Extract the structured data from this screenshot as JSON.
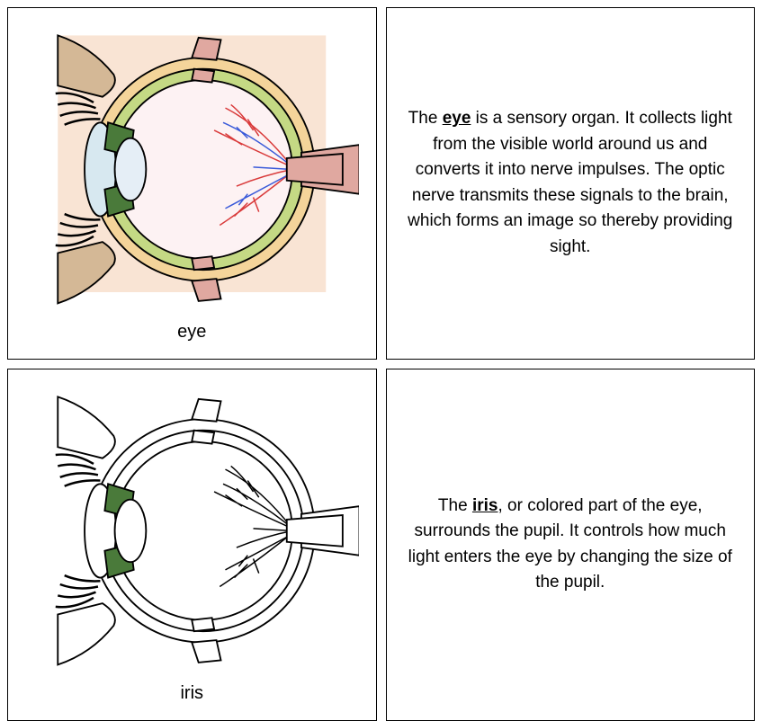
{
  "cards": [
    {
      "caption": "eye",
      "colors": {
        "bg": "#f9e4d4",
        "outer_ring": "#f4d49a",
        "inner_ring": "#c4d984",
        "vitreous": "#fdf2f3",
        "cornea": "#d7e8f0",
        "lens": "#e5eef6",
        "iris": "#4a7a3a",
        "muscle": "#e0a8a0",
        "vessel_red": "#d93a3a",
        "vessel_blue": "#3a5ad9",
        "stroke": "#000000",
        "lash": "#000000",
        "brow": "#d4b896"
      }
    },
    {
      "term": "eye",
      "text_before": "The ",
      "text_after": " is a sensory organ. It collects light from the visible world around us and converts it into nerve impulses. The optic nerve transmits these signals to the brain, which forms an image so thereby providing sight."
    },
    {
      "caption": "iris",
      "colors": {
        "bg": "#ffffff",
        "outer_ring": "#ffffff",
        "inner_ring": "#ffffff",
        "vitreous": "#ffffff",
        "cornea": "#ffffff",
        "lens": "#ffffff",
        "iris": "#4a7a3a",
        "muscle": "#ffffff",
        "vessel_red": "#000000",
        "vessel_blue": "#000000",
        "stroke": "#000000",
        "lash": "#000000",
        "brow": "#ffffff"
      }
    },
    {
      "term": "iris",
      "text_before": "The ",
      "text_after": ", or colored part of the eye, surrounds the pupil. It controls how much light enters the eye by changing the size of the pupil."
    }
  ]
}
